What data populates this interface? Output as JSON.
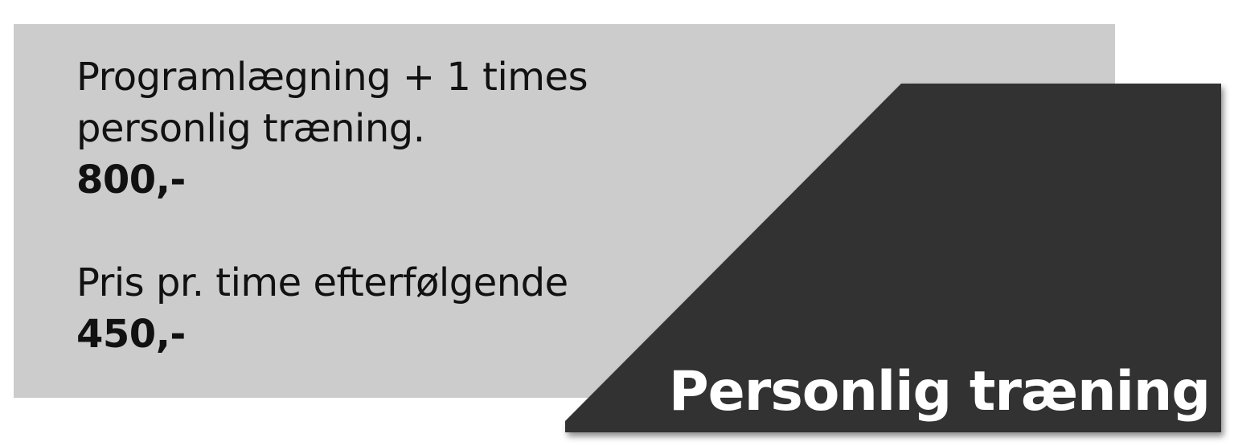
{
  "offer": {
    "line1": "Programlægning + 1 times",
    "line2": "personlig træning.",
    "price1": "800,-",
    "line3": "Pris pr. time efterfølgende",
    "price2": "450,-"
  },
  "title": "Personlig træning",
  "colors": {
    "card_background": "#cccccc",
    "panel_background": "#333333",
    "title_text": "#ffffff",
    "body_text": "#111111"
  }
}
